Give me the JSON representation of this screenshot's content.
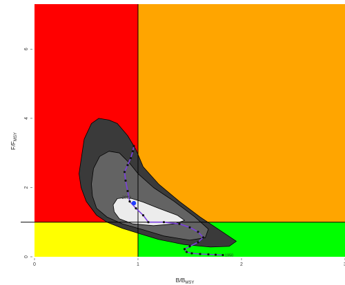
{
  "chart_data": {
    "type": "kobe-plot",
    "xlabel_main": "B/B",
    "xlabel_sub": "MSY",
    "ylabel_main": "F/F",
    "ylabel_sub": "MSY",
    "xlim": [
      0,
      3
    ],
    "ylim": [
      0,
      7.3
    ],
    "x_ticks": [
      "0",
      "1",
      "2",
      "3"
    ],
    "y_ticks": [
      "0",
      "2",
      "4",
      "6"
    ],
    "grid": false,
    "quadrants": {
      "red": "#ff0000",
      "orange": "#ffa500",
      "yellow": "#ffff00",
      "green": "#00ff00"
    },
    "reference_lines": {
      "b_over_bmsy": 1,
      "f_over_fmsy": 1
    },
    "confidence_regions": [
      {
        "fill": "#3a3a3a",
        "points": [
          [
            0.45,
            2.8
          ],
          [
            0.48,
            3.4
          ],
          [
            0.55,
            3.85
          ],
          [
            0.62,
            4.0
          ],
          [
            0.72,
            3.95
          ],
          [
            0.8,
            3.85
          ],
          [
            0.9,
            3.5
          ],
          [
            0.98,
            3.1
          ],
          [
            1.05,
            2.6
          ],
          [
            1.2,
            2.1
          ],
          [
            1.4,
            1.6
          ],
          [
            1.6,
            1.15
          ],
          [
            1.8,
            0.75
          ],
          [
            1.95,
            0.45
          ],
          [
            1.88,
            0.3
          ],
          [
            1.7,
            0.28
          ],
          [
            1.45,
            0.35
          ],
          [
            1.2,
            0.5
          ],
          [
            1.0,
            0.68
          ],
          [
            0.85,
            0.82
          ],
          [
            0.7,
            1.0
          ],
          [
            0.6,
            1.2
          ],
          [
            0.5,
            1.6
          ],
          [
            0.45,
            2.0
          ],
          [
            0.43,
            2.4
          ]
        ]
      },
      {
        "fill": "#636363",
        "points": [
          [
            0.55,
            2.1
          ],
          [
            0.57,
            2.55
          ],
          [
            0.63,
            2.9
          ],
          [
            0.72,
            3.05
          ],
          [
            0.82,
            3.0
          ],
          [
            0.92,
            2.7
          ],
          [
            1.0,
            2.4
          ],
          [
            1.15,
            2.0
          ],
          [
            1.35,
            1.6
          ],
          [
            1.55,
            1.15
          ],
          [
            1.68,
            0.8
          ],
          [
            1.65,
            0.55
          ],
          [
            1.5,
            0.48
          ],
          [
            1.25,
            0.6
          ],
          [
            1.05,
            0.78
          ],
          [
            0.85,
            0.95
          ],
          [
            0.7,
            1.15
          ],
          [
            0.6,
            1.4
          ],
          [
            0.56,
            1.75
          ]
        ]
      },
      {
        "fill": "#ececec",
        "points": [
          [
            0.76,
            1.5
          ],
          [
            0.8,
            1.68
          ],
          [
            0.9,
            1.72
          ],
          [
            1.05,
            1.58
          ],
          [
            1.2,
            1.4
          ],
          [
            1.38,
            1.2
          ],
          [
            1.45,
            1.05
          ],
          [
            1.35,
            0.95
          ],
          [
            1.15,
            0.9
          ],
          [
            0.95,
            0.95
          ],
          [
            0.82,
            1.1
          ],
          [
            0.77,
            1.3
          ]
        ]
      }
    ],
    "trajectory": {
      "line_color": "#7b3fe0",
      "marker_color": "#111111",
      "points": [
        [
          1.82,
          0.05
        ],
        [
          1.75,
          0.06
        ],
        [
          1.68,
          0.07
        ],
        [
          1.6,
          0.08
        ],
        [
          1.52,
          0.1
        ],
        [
          1.47,
          0.14
        ],
        [
          1.45,
          0.22
        ],
        [
          1.5,
          0.3
        ],
        [
          1.58,
          0.42
        ],
        [
          1.63,
          0.56
        ],
        [
          1.58,
          0.72
        ],
        [
          1.5,
          0.85
        ],
        [
          1.4,
          0.95
        ],
        [
          1.25,
          1.0
        ],
        [
          1.1,
          1.0
        ],
        [
          1.05,
          1.2
        ],
        [
          0.98,
          1.4
        ],
        [
          0.92,
          1.6
        ],
        [
          0.9,
          1.9
        ],
        [
          0.88,
          2.2
        ],
        [
          0.87,
          2.45
        ],
        [
          0.9,
          2.65
        ],
        [
          0.93,
          2.85
        ],
        [
          0.95,
          3.05
        ],
        [
          0.96,
          3.2
        ]
      ]
    },
    "current_point": {
      "x": 0.96,
      "y": 1.55,
      "color": "#1f3fff"
    },
    "annotations": [
      "2022",
      "1950"
    ]
  }
}
